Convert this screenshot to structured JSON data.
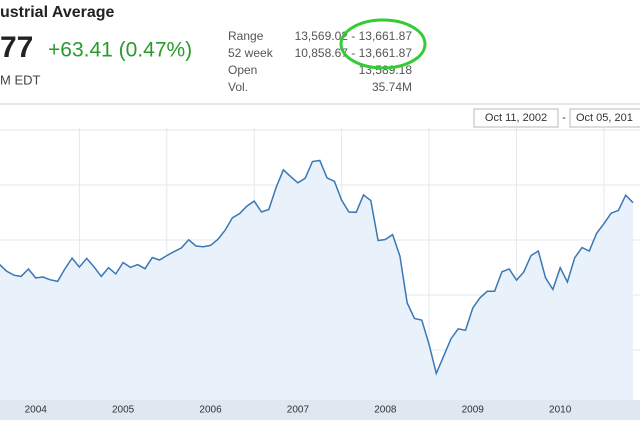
{
  "header": {
    "title": "ustrial Average",
    "price": "77",
    "change": "+63.41 (0.47%)",
    "time": "M EDT"
  },
  "stats": [
    {
      "label": "Range",
      "value": "13,569.02 - 13,661.87"
    },
    {
      "label": "52 week",
      "value": "10,858.67 - 13,661.87"
    },
    {
      "label": "Open",
      "value": "13,589.18"
    },
    {
      "label": "Vol.",
      "value": "35.74M"
    }
  ],
  "date_range": {
    "start": "Oct 11, 2002",
    "separator": "-",
    "end": "Oct 05, 201"
  },
  "chart": {
    "type": "line",
    "color": "#3a77b5",
    "x_labels": [
      "2004",
      "2005",
      "2006",
      "2007",
      "2008",
      "2009",
      "2010"
    ],
    "ylim": [
      6200,
      15400
    ],
    "values": [
      10450,
      10580,
      10360,
      10230,
      10190,
      10430,
      10140,
      10170,
      10080,
      10030,
      10430,
      10780,
      10490,
      10770,
      10500,
      10190,
      10470,
      10270,
      10640,
      10480,
      10570,
      10440,
      10800,
      10720,
      10860,
      10990,
      11110,
      11370,
      11170,
      11150,
      11190,
      11380,
      11680,
      12080,
      12220,
      12460,
      12620,
      12270,
      12350,
      13060,
      13630,
      13410,
      13210,
      13360,
      13900,
      13930,
      13370,
      13260,
      12650,
      12270,
      12260,
      12820,
      12640,
      11350,
      11380,
      11540,
      10850,
      9330,
      8830,
      8780,
      8000,
      7060,
      7610,
      8170,
      8500,
      8450,
      9170,
      9500,
      9710,
      9710,
      10340,
      10430,
      10070,
      10330,
      10860,
      11010,
      10140,
      9770,
      10470,
      10010,
      10790,
      11120,
      11010,
      11580,
      11890,
      12230,
      12320,
      12810,
      12570
    ]
  }
}
